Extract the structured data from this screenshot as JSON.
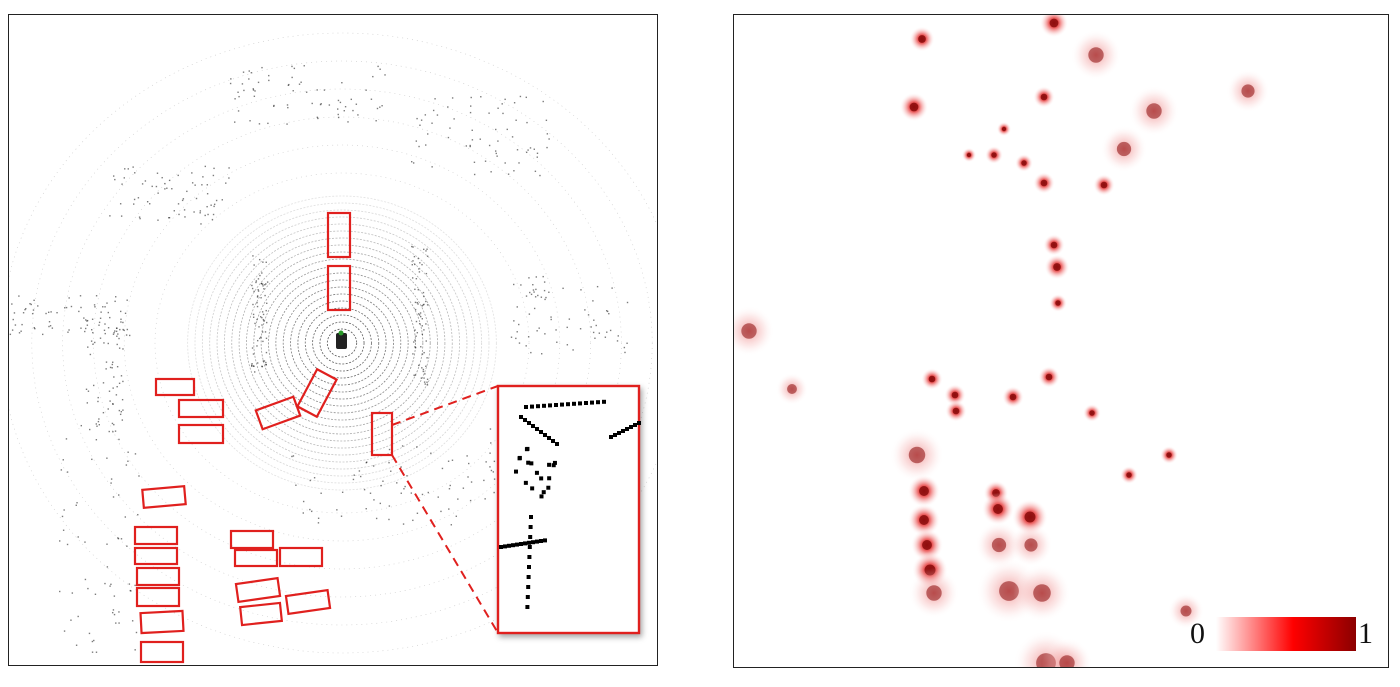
{
  "figure": {
    "left_panel": {
      "description_name": "lidar-point-cloud-bev",
      "box_color": "#e0201e",
      "point_color": "#111111"
    },
    "right_panel": {
      "description_name": "heatmap",
      "heat_colors": [
        "#ffffff",
        "#f7a9a9",
        "#ee2020",
        "#8b0a0a"
      ]
    },
    "colorbar": {
      "min_label": "0",
      "max_label": "1",
      "gradient": [
        "#ffffff",
        "#ff0000",
        "#8b0000"
      ]
    }
  }
}
